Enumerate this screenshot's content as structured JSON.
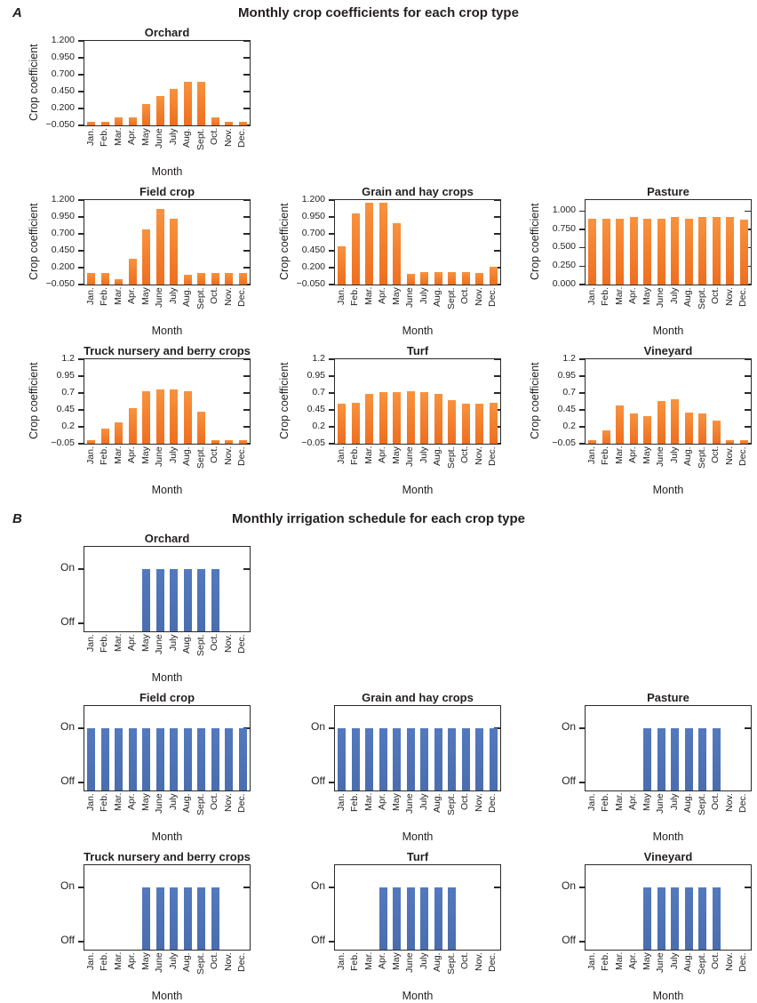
{
  "panel_a": {
    "label": "A",
    "title": "Monthly crop coefficients for each crop type"
  },
  "panel_b": {
    "label": "B",
    "title": "Monthly irrigation schedule for each crop type"
  },
  "colors": {
    "bar_orange_top": "#f8923e",
    "bar_orange_bottom": "#ee6f1f",
    "bar_blue_top": "#5379be",
    "bar_blue_bottom": "#4a6dae",
    "axis": "#2b2a29"
  },
  "chart_data": [
    {
      "type": "bar",
      "panel": "a",
      "row": 1,
      "col": 1,
      "title": "Orchard",
      "ylabel": "Crop coefficient",
      "xlabel": "Month",
      "color": "orange",
      "categories": [
        "Jan.",
        "Feb.",
        "Mar.",
        "Apr.",
        "May",
        "June",
        "July",
        "Aug.",
        "Sept.",
        "Oct.",
        "Nov.",
        "Dec."
      ],
      "ylim": [
        -0.05,
        1.2
      ],
      "yticks": [
        {
          "label": "1.200",
          "value": 1.2
        },
        {
          "label": "0.950",
          "value": 0.95
        },
        {
          "label": "0.700",
          "value": 0.7
        },
        {
          "label": "0.450",
          "value": 0.45
        },
        {
          "label": "0.200",
          "value": 0.2
        },
        {
          "label": "−0.050",
          "value": -0.05
        }
      ],
      "values": [
        0.0,
        0.0,
        0.07,
        0.07,
        0.27,
        0.38,
        0.49,
        0.59,
        0.59,
        0.07,
        0.0,
        0.0
      ]
    },
    {
      "type": "bar",
      "panel": "a",
      "row": 2,
      "col": 1,
      "title": "Field crop",
      "ylabel": "Crop coefficient",
      "xlabel": "Month",
      "color": "orange",
      "categories": [
        "Jan.",
        "Feb.",
        "Mar.",
        "Apr.",
        "May",
        "June",
        "July",
        "Aug.",
        "Sept.",
        "Oct.",
        "Nov.",
        "Dec."
      ],
      "ylim": [
        -0.05,
        1.2
      ],
      "yticks": [
        {
          "label": "1.200",
          "value": 1.2
        },
        {
          "label": "0.950",
          "value": 0.95
        },
        {
          "label": "0.700",
          "value": 0.7
        },
        {
          "label": "0.450",
          "value": 0.45
        },
        {
          "label": "0.200",
          "value": 0.2
        },
        {
          "label": "−0.050",
          "value": -0.05
        }
      ],
      "values": [
        0.12,
        0.12,
        0.03,
        0.33,
        0.77,
        1.07,
        0.93,
        0.1,
        0.12,
        0.12,
        0.12,
        0.12
      ]
    },
    {
      "type": "bar",
      "panel": "a",
      "row": 2,
      "col": 2,
      "title": "Grain and hay crops",
      "ylabel": "Crop coefficient",
      "xlabel": "Month",
      "color": "orange",
      "categories": [
        "Jan.",
        "Feb.",
        "Mar.",
        "Apr.",
        "May",
        "June",
        "July",
        "Aug.",
        "Sept.",
        "Oct.",
        "Nov.",
        "Dec."
      ],
      "ylim": [
        -0.05,
        1.2
      ],
      "yticks": [
        {
          "label": "1.200",
          "value": 1.2
        },
        {
          "label": "0.950",
          "value": 0.95
        },
        {
          "label": "0.700",
          "value": 0.7
        },
        {
          "label": "0.450",
          "value": 0.45
        },
        {
          "label": "0.200",
          "value": 0.2
        },
        {
          "label": "−0.050",
          "value": -0.05
        }
      ],
      "values": [
        0.51,
        1.0,
        1.16,
        1.16,
        0.86,
        0.11,
        0.13,
        0.13,
        0.13,
        0.13,
        0.12,
        0.21
      ]
    },
    {
      "type": "bar",
      "panel": "a",
      "row": 2,
      "col": 3,
      "title": "Pasture",
      "ylabel": "Crop coefficient",
      "xlabel": "Month",
      "color": "orange",
      "categories": [
        "Jan.",
        "Feb.",
        "Mar.",
        "Apr.",
        "May",
        "June",
        "July",
        "Aug.",
        "Sept.",
        "Oct.",
        "Nov.",
        "Dec."
      ],
      "ylim": [
        0,
        1.15
      ],
      "yticks": [
        {
          "label": "1.000",
          "value": 1.0
        },
        {
          "label": "0.750",
          "value": 0.75
        },
        {
          "label": "0.500",
          "value": 0.5
        },
        {
          "label": "0.250",
          "value": 0.25
        },
        {
          "label": "0.000",
          "value": 0.0
        }
      ],
      "values": [
        0.9,
        0.9,
        0.9,
        0.92,
        0.9,
        0.9,
        0.92,
        0.9,
        0.92,
        0.92,
        0.92,
        0.88
      ]
    },
    {
      "type": "bar",
      "panel": "a",
      "row": 3,
      "col": 1,
      "title": "Truck nursery and berry crops",
      "ylabel": "Crop coefficient",
      "xlabel": "Month",
      "color": "orange",
      "categories": [
        "Jan.",
        "Feb.",
        "Mar.",
        "Apr.",
        "May",
        "June",
        "July",
        "Aug.",
        "Sept.",
        "Oct.",
        "Nov.",
        "Dec."
      ],
      "ylim": [
        -0.05,
        1.2
      ],
      "yticks": [
        {
          "label": "1.2",
          "value": 1.2
        },
        {
          "label": "0.95",
          "value": 0.95
        },
        {
          "label": "0.7",
          "value": 0.7
        },
        {
          "label": "0.45",
          "value": 0.45
        },
        {
          "label": "0.2",
          "value": 0.2
        },
        {
          "label": "−0.05",
          "value": -0.05
        }
      ],
      "values": [
        0.0,
        0.17,
        0.27,
        0.47,
        0.72,
        0.75,
        0.75,
        0.72,
        0.43,
        0.0,
        0.0,
        0.0
      ]
    },
    {
      "type": "bar",
      "panel": "a",
      "row": 3,
      "col": 2,
      "title": "Turf",
      "ylabel": "Crop coefficient",
      "xlabel": "Month",
      "color": "orange",
      "categories": [
        "Jan.",
        "Feb.",
        "Mar.",
        "Apr.",
        "May",
        "June",
        "July",
        "Aug.",
        "Sept.",
        "Oct.",
        "Nov.",
        "Dec."
      ],
      "ylim": [
        -0.05,
        1.2
      ],
      "yticks": [
        {
          "label": "1.2",
          "value": 1.2
        },
        {
          "label": "0.95",
          "value": 0.95
        },
        {
          "label": "0.7",
          "value": 0.7
        },
        {
          "label": "0.45",
          "value": 0.45
        },
        {
          "label": "0.2",
          "value": 0.2
        },
        {
          "label": "−0.05",
          "value": -0.05
        }
      ],
      "values": [
        0.54,
        0.55,
        0.69,
        0.71,
        0.71,
        0.73,
        0.71,
        0.69,
        0.6,
        0.54,
        0.54,
        0.55
      ]
    },
    {
      "type": "bar",
      "panel": "a",
      "row": 3,
      "col": 3,
      "title": "Vineyard",
      "ylabel": "Crop coefficient",
      "xlabel": "Month",
      "color": "orange",
      "categories": [
        "Jan.",
        "Feb.",
        "Mar.",
        "Apr.",
        "May",
        "June",
        "July",
        "Aug.",
        "Sept.",
        "Oct.",
        "Nov.",
        "Dec."
      ],
      "ylim": [
        -0.05,
        1.2
      ],
      "yticks": [
        {
          "label": "1.2",
          "value": 1.2
        },
        {
          "label": "0.95",
          "value": 0.95
        },
        {
          "label": "0.7",
          "value": 0.7
        },
        {
          "label": "0.45",
          "value": 0.45
        },
        {
          "label": "0.2",
          "value": 0.2
        },
        {
          "label": "−0.05",
          "value": -0.05
        }
      ],
      "values": [
        0.0,
        0.15,
        0.52,
        0.4,
        0.36,
        0.58,
        0.61,
        0.41,
        0.4,
        0.29,
        0.0,
        0.0
      ]
    },
    {
      "type": "bar",
      "panel": "b",
      "row": 1,
      "col": 1,
      "title": "Orchard",
      "ylabel": "",
      "xlabel": "Month",
      "color": "blue",
      "omit_zero_bars": true,
      "categories": [
        "Jan.",
        "Feb.",
        "Mar.",
        "Apr.",
        "May",
        "June",
        "July",
        "Aug.",
        "Sept.",
        "Oct.",
        "Nov.",
        "Dec."
      ],
      "ylim": [
        -0.15,
        1.41
      ],
      "yticks": [
        {
          "label": "On",
          "value": 1
        },
        {
          "label": "Off",
          "value": 0
        }
      ],
      "right_tick_values": [
        1
      ],
      "values": [
        0,
        0,
        0,
        0,
        1,
        1,
        1,
        1,
        1,
        1,
        0,
        0
      ]
    },
    {
      "type": "bar",
      "panel": "b",
      "row": 2,
      "col": 1,
      "title": "Field crop",
      "ylabel": "",
      "xlabel": "Month",
      "color": "blue",
      "omit_zero_bars": true,
      "categories": [
        "Jan.",
        "Feb.",
        "Mar.",
        "Apr.",
        "May",
        "June",
        "July",
        "Aug.",
        "Sept.",
        "Oct.",
        "Nov.",
        "Dec."
      ],
      "ylim": [
        -0.15,
        1.41
      ],
      "yticks": [
        {
          "label": "On",
          "value": 1
        },
        {
          "label": "Off",
          "value": 0
        }
      ],
      "right_tick_values": [
        1
      ],
      "values": [
        1,
        1,
        1,
        1,
        1,
        1,
        1,
        1,
        1,
        1,
        1,
        1
      ]
    },
    {
      "type": "bar",
      "panel": "b",
      "row": 2,
      "col": 2,
      "title": "Grain and hay crops",
      "ylabel": "",
      "xlabel": "Month",
      "color": "blue",
      "omit_zero_bars": true,
      "categories": [
        "Jan.",
        "Feb.",
        "Mar.",
        "Apr.",
        "May",
        "June",
        "July",
        "Aug.",
        "Sept.",
        "Oct.",
        "Nov.",
        "Dec."
      ],
      "ylim": [
        -0.15,
        1.41
      ],
      "yticks": [
        {
          "label": "On",
          "value": 1
        },
        {
          "label": "Off",
          "value": 0
        }
      ],
      "right_tick_values": [
        1
      ],
      "values": [
        1,
        1,
        1,
        1,
        1,
        1,
        1,
        1,
        1,
        1,
        1,
        1
      ]
    },
    {
      "type": "bar",
      "panel": "b",
      "row": 2,
      "col": 3,
      "title": "Pasture",
      "ylabel": "",
      "xlabel": "Month",
      "color": "blue",
      "omit_zero_bars": true,
      "categories": [
        "Jan.",
        "Feb.",
        "Mar.",
        "Apr.",
        "May",
        "June",
        "July",
        "Aug.",
        "Sept.",
        "Oct.",
        "Nov.",
        "Dec."
      ],
      "ylim": [
        -0.15,
        1.41
      ],
      "yticks": [
        {
          "label": "On",
          "value": 1
        },
        {
          "label": "Off",
          "value": 0
        }
      ],
      "right_tick_values": [
        1
      ],
      "values": [
        0,
        0,
        0,
        0,
        1,
        1,
        1,
        1,
        1,
        1,
        0,
        0
      ]
    },
    {
      "type": "bar",
      "panel": "b",
      "row": 3,
      "col": 1,
      "title": "Truck nursery and berry crops",
      "ylabel": "",
      "xlabel": "Month",
      "color": "blue",
      "omit_zero_bars": true,
      "categories": [
        "Jan.",
        "Feb.",
        "Mar.",
        "Apr.",
        "May",
        "June",
        "July",
        "Aug.",
        "Sept.",
        "Oct.",
        "Nov.",
        "Dec."
      ],
      "ylim": [
        -0.15,
        1.41
      ],
      "yticks": [
        {
          "label": "On",
          "value": 1
        },
        {
          "label": "Off",
          "value": 0
        }
      ],
      "right_tick_values": [
        1
      ],
      "values": [
        0,
        0,
        0,
        0,
        1,
        1,
        1,
        1,
        1,
        1,
        0,
        0
      ]
    },
    {
      "type": "bar",
      "panel": "b",
      "row": 3,
      "col": 2,
      "title": "Turf",
      "ylabel": "",
      "xlabel": "Month",
      "color": "blue",
      "omit_zero_bars": true,
      "categories": [
        "Jan.",
        "Feb.",
        "Mar.",
        "Apr.",
        "May",
        "June",
        "July",
        "Aug.",
        "Sept.",
        "Oct.",
        "Nov.",
        "Dec."
      ],
      "ylim": [
        -0.15,
        1.41
      ],
      "yticks": [
        {
          "label": "On",
          "value": 1
        },
        {
          "label": "Off",
          "value": 0
        }
      ],
      "right_tick_values": [
        1
      ],
      "values": [
        0,
        0,
        0,
        1,
        1,
        1,
        1,
        1,
        1,
        0,
        0,
        0
      ]
    },
    {
      "type": "bar",
      "panel": "b",
      "row": 3,
      "col": 3,
      "title": "Vineyard",
      "ylabel": "",
      "xlabel": "Month",
      "color": "blue",
      "omit_zero_bars": true,
      "categories": [
        "Jan.",
        "Feb.",
        "Mar.",
        "Apr.",
        "May",
        "June",
        "July",
        "Aug.",
        "Sept.",
        "Oct.",
        "Nov.",
        "Dec."
      ],
      "ylim": [
        -0.15,
        1.41
      ],
      "yticks": [
        {
          "label": "On",
          "value": 1
        },
        {
          "label": "Off",
          "value": 0
        }
      ],
      "right_tick_values": [
        1
      ],
      "values": [
        0,
        0,
        0,
        0,
        1,
        1,
        1,
        1,
        1,
        1,
        0,
        0
      ]
    }
  ]
}
